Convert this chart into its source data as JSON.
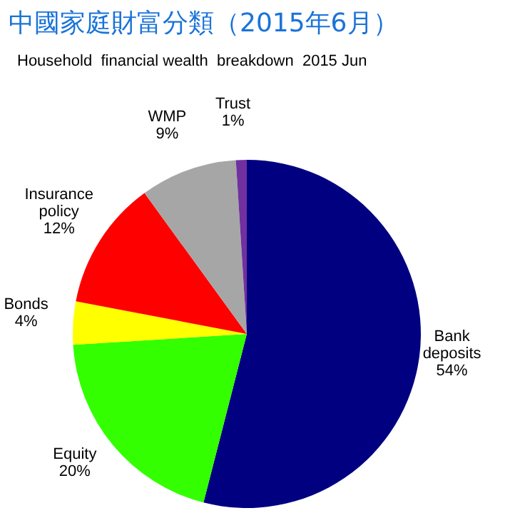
{
  "chart_data": {
    "type": "pie",
    "title": "中國家庭財富分類（2015年6月）",
    "subtitle": "Household  financial wealth  breakdown  2015 Jun",
    "categories": [
      "Bank deposits",
      "Equity",
      "Bonds",
      "Insurance policy",
      "WMP",
      "Trust"
    ],
    "values": [
      54,
      20,
      4,
      12,
      9,
      1
    ],
    "value_labels": [
      "54%",
      "20%",
      "4%",
      "12%",
      "9%",
      "1%"
    ],
    "colors": [
      "#000080",
      "#33ff00",
      "#ffff00",
      "#ff0000",
      "#a6a6a6",
      "#7030a0"
    ],
    "legend": false
  }
}
